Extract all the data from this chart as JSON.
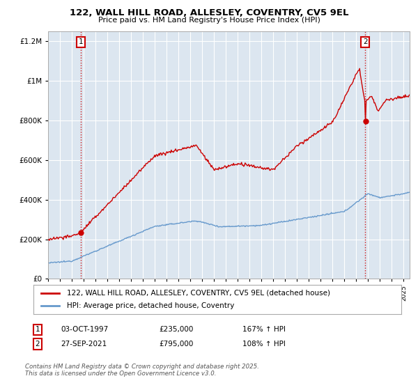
{
  "title": "122, WALL HILL ROAD, ALLESLEY, COVENTRY, CV5 9EL",
  "subtitle": "Price paid vs. HM Land Registry's House Price Index (HPI)",
  "legend_line1": "122, WALL HILL ROAD, ALLESLEY, COVENTRY, CV5 9EL (detached house)",
  "legend_line2": "HPI: Average price, detached house, Coventry",
  "annotation1_label": "1",
  "annotation1_date": "03-OCT-1997",
  "annotation1_price": "£235,000",
  "annotation1_hpi": "167% ↑ HPI",
  "annotation1_year": 1997.75,
  "annotation1_value": 235000,
  "annotation2_label": "2",
  "annotation2_date": "27-SEP-2021",
  "annotation2_price": "£795,000",
  "annotation2_hpi": "108% ↑ HPI",
  "annotation2_year": 2021.75,
  "annotation2_value": 795000,
  "footer": "Contains HM Land Registry data © Crown copyright and database right 2025.\nThis data is licensed under the Open Government Licence v3.0.",
  "red_color": "#cc0000",
  "blue_color": "#6699cc",
  "plot_bg_color": "#dce6f0",
  "background_color": "#ffffff",
  "grid_color": "#ffffff",
  "ylim": [
    0,
    1250000
  ],
  "xlim_start": 1995,
  "xlim_end": 2025.5,
  "yticks": [
    0,
    200000,
    400000,
    600000,
    800000,
    1000000,
    1200000
  ]
}
